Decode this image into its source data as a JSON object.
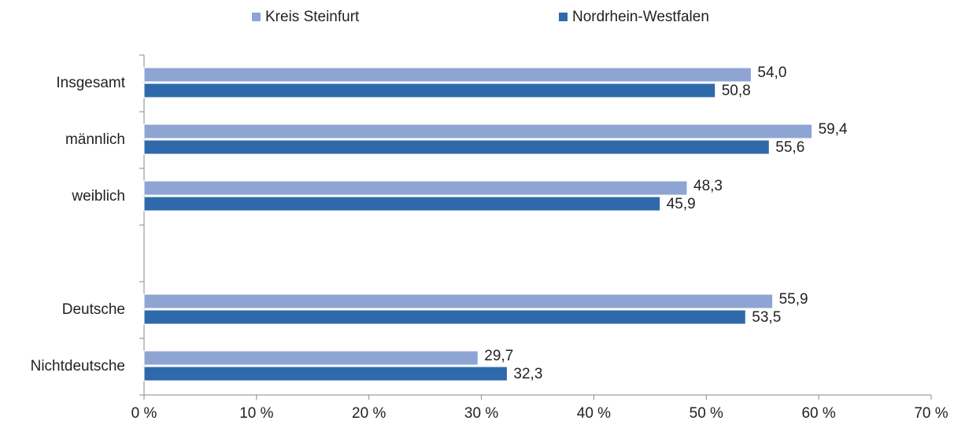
{
  "chart_data": {
    "type": "bar",
    "orientation": "horizontal",
    "categories": [
      "Insgesamt",
      "männlich",
      "weiblich",
      null,
      "Deutsche",
      "Nichtdeutsche"
    ],
    "series": [
      {
        "name": "Kreis Steinfurt",
        "color": "#8ea5d3",
        "values": [
          54.0,
          59.4,
          48.3,
          null,
          55.9,
          29.7
        ],
        "value_labels": [
          "54,0",
          "59,4",
          "48,3",
          null,
          "55,9",
          "29,7"
        ]
      },
      {
        "name": "Nordrhein-Westfalen",
        "color": "#2e6aab",
        "values": [
          50.8,
          55.6,
          45.9,
          null,
          53.5,
          32.3
        ],
        "value_labels": [
          "50,8",
          "55,6",
          "45,9",
          null,
          "53,5",
          "32,3"
        ]
      }
    ],
    "xlim": [
      0,
      70
    ],
    "xticks": [
      {
        "value": 0,
        "label": "0 %"
      },
      {
        "value": 10,
        "label": "10 %"
      },
      {
        "value": 20,
        "label": "20 %"
      },
      {
        "value": 30,
        "label": "30 %"
      },
      {
        "value": 40,
        "label": "40 %"
      },
      {
        "value": 50,
        "label": "50 %"
      },
      {
        "value": 60,
        "label": "60 %"
      },
      {
        "value": 70,
        "label": "70 %"
      }
    ],
    "legend": "top"
  }
}
